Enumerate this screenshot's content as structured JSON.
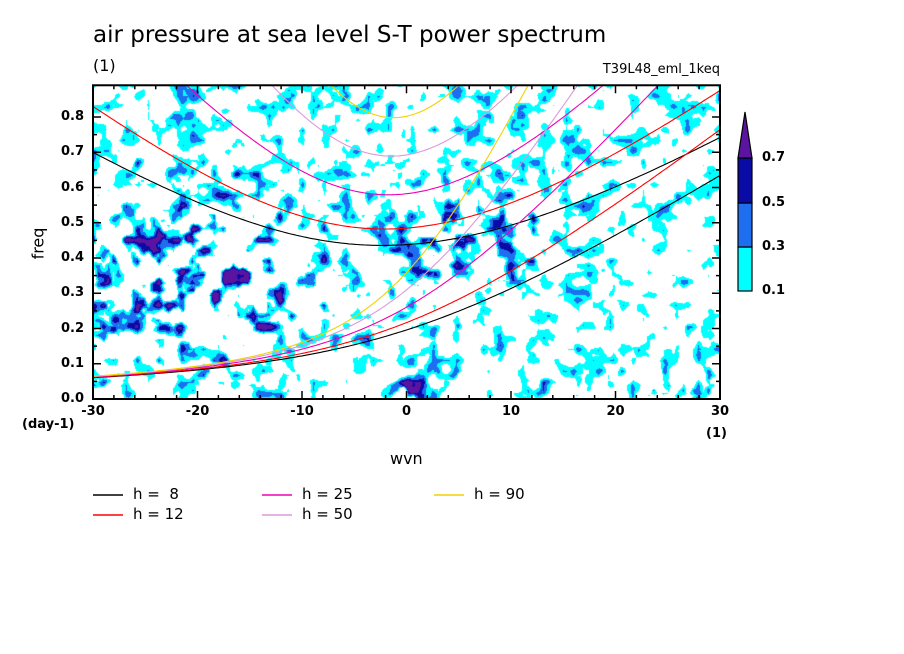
{
  "title": "air pressure at sea level S-T power spectrum",
  "subtitle_left": "(1)",
  "subtitle_right": "T39L48_eml_1keq",
  "chart_data": {
    "type": "heatmap",
    "title": "air pressure at sea level S-T power spectrum",
    "xlabel": "wvn",
    "ylabel": "freq",
    "x_unit": "(1)",
    "y_unit": "(day-1)",
    "xlim": [
      -30,
      30
    ],
    "ylim": [
      0,
      0.89
    ],
    "x_ticks": [
      "-30",
      "-20",
      "-10",
      "0",
      "10",
      "20",
      "30"
    ],
    "y_ticks": [
      "0.0",
      "0.1",
      "0.2",
      "0.3",
      "0.4",
      "0.5",
      "0.6",
      "0.7",
      "0.8"
    ],
    "contour_levels": [
      "0.1",
      "0.3",
      "0.5",
      "0.7"
    ],
    "contour_colors": [
      "#00ffff",
      "#1e6ef0",
      "#0a0aa5",
      "#5a14a0"
    ],
    "grid": false,
    "legend_position": "bottom",
    "curves": [
      {
        "name": "h =  8",
        "h": 8,
        "color": "#000000"
      },
      {
        "name": "h = 12",
        "h": 12,
        "color": "#ff0000"
      },
      {
        "name": "h = 25",
        "h": 25,
        "color": "#f000b4"
      },
      {
        "name": "h = 50",
        "h": 50,
        "color": "#dc9adc"
      },
      {
        "name": "h = 90",
        "h": 90,
        "color": "#f0d200"
      }
    ]
  }
}
